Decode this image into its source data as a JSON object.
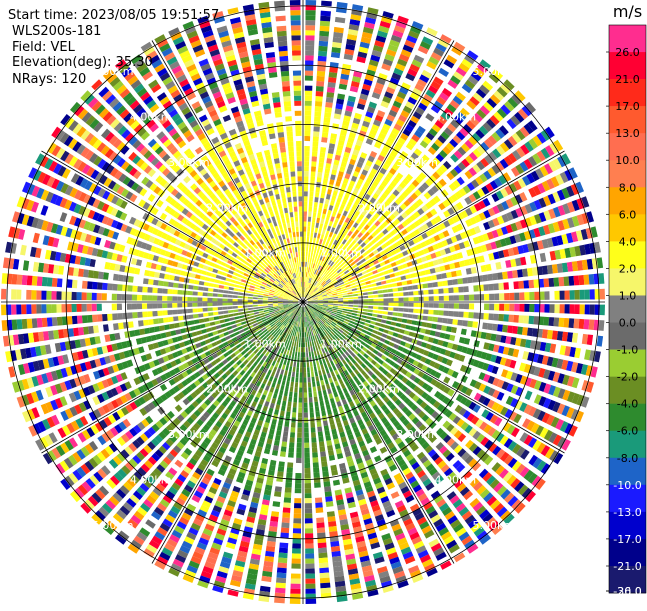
{
  "header": {
    "start_time": "Start time: 2023/08/05 19:51:57",
    "instrument": "WLS200s-181",
    "field": "Field: VEL",
    "elevation": "Elevation(deg): 35.30",
    "nrays": "NRays: 120"
  },
  "chart_data": {
    "type": "heatmap",
    "projection": "polar-ppi",
    "nrays": 120,
    "range_rings_km": [
      1,
      2,
      3,
      4,
      5
    ],
    "ring_labels": [
      "1.00km",
      "2.00km",
      "3.00km",
      "4.00km",
      "5.00km"
    ],
    "grid": true,
    "colorbar": {
      "title": "m/s",
      "position": "right",
      "tick_labels": [
        "26.0",
        "21.0",
        "17.0",
        "13.0",
        "10.0",
        "8.0",
        "6.0",
        "4.0",
        "2.0",
        "1.0",
        "0.0",
        "-1.0",
        "-2.0",
        "-4.0",
        "-6.0",
        "-8.0",
        "-10.0",
        "-13.0",
        "-17.0",
        "-21.0",
        "-26.0",
        "-30.0"
      ],
      "colors": [
        "#ff2d8f",
        "#ff0033",
        "#ff2a1a",
        "#ff5a2e",
        "#ff6e50",
        "#ff7f50",
        "#ffa500",
        "#ffc800",
        "#ffff1a",
        "#f6f66a",
        "#808080",
        "#6b6b6b",
        "#9acd32",
        "#6b8e23",
        "#2e8b2e",
        "#1a9a7a",
        "#1e64c8",
        "#1a1aff",
        "#0000cd",
        "#00008b",
        "#1a1a6e"
      ]
    },
    "pattern": {
      "near_field": "0–3 km: positive velocities (yellow/orange) in the northern half, negative velocities (olive/green) in the southern half, gray near-zero bands along the boundary",
      "far_field": "beyond ~3.5 km: noisy data with random colors across the full scale"
    }
  }
}
